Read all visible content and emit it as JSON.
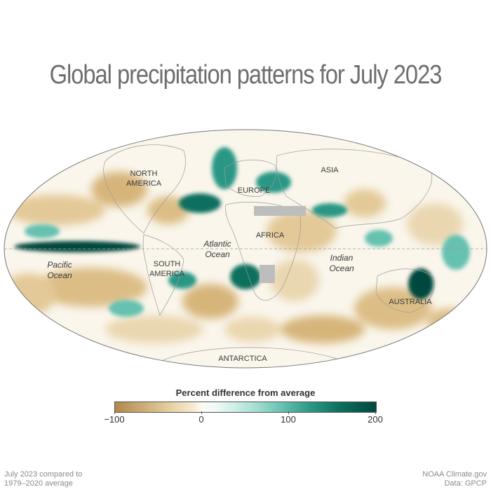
{
  "title": "Global precipitation patterns for July 2023",
  "continent_labels": {
    "north_america": "NORTH\nAMERICA",
    "south_america": "SOUTH\nAMERICA",
    "europe": "EUROPE",
    "asia": "ASIA",
    "africa": "AFRICA",
    "australia": "AUSTRALIA",
    "antarctica": "ANTARCTICA"
  },
  "ocean_labels": {
    "pacific": "Pacific\nOcean",
    "atlantic": "Atlantic\nOcean",
    "indian": "Indian\nOcean"
  },
  "legend": {
    "title": "Percent difference from average",
    "ticks": [
      "−100",
      "0",
      "100",
      "200"
    ],
    "range": [
      -100,
      200
    ],
    "colors": {
      "dry": "#b1894a",
      "neutral": "#fdfaf3",
      "wet": "#00473c"
    }
  },
  "footer": {
    "left": "July 2023 compared to\n1979–2020 average",
    "right": "NOAA Climate.gov\nData: GPCP"
  }
}
